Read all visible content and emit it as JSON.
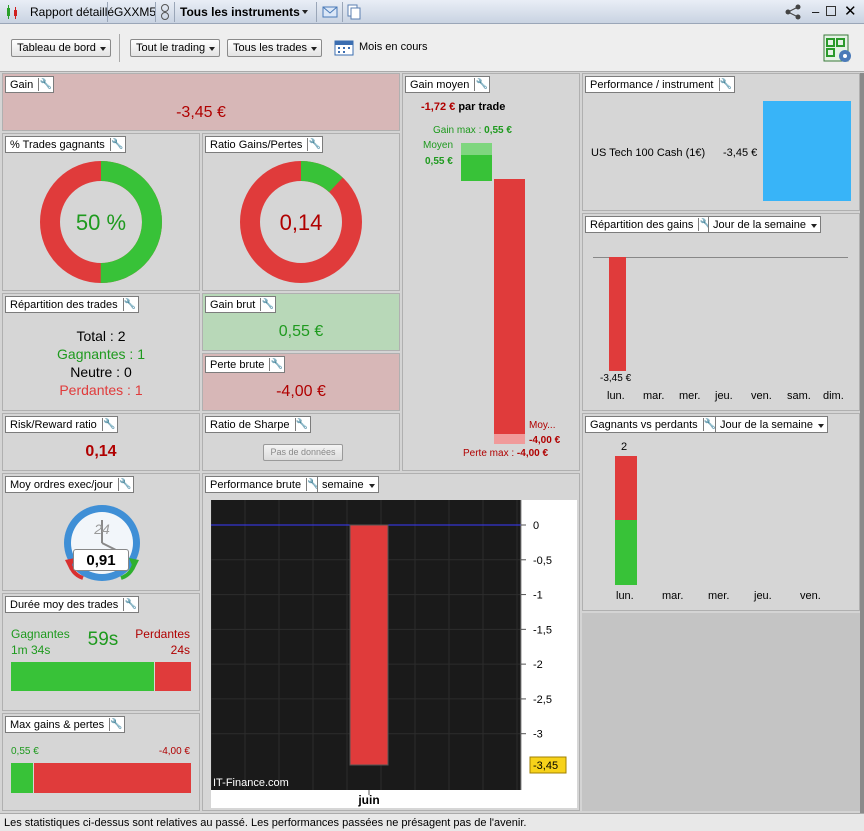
{
  "titlebar": {
    "report_tab": "Rapport détaillé",
    "account_tab": "GXXM5",
    "instruments": "Tous les instruments"
  },
  "toolbar": {
    "dashboard": "Tableau de bord",
    "trading": "Tout le trading",
    "trades": "Tous les trades",
    "period": "Mois en cours"
  },
  "gain": {
    "title": "Gain",
    "value": "-3,45 €"
  },
  "win_pct": {
    "title": "% Trades gagnants",
    "value": "50 %",
    "fraction": 0.5
  },
  "ratio": {
    "title": "Ratio Gains/Pertes",
    "value": "0,14",
    "fraction": 0.12
  },
  "gain_moyen": {
    "title": "Gain moyen",
    "value": "-1,72 €",
    "per_trade": "par trade",
    "gain_max_label": "Gain max :",
    "gain_max": "0,55 €",
    "moyen_label": "Moyen",
    "moyen_gain": "0,55 €",
    "moy_loss_label": "Moy...",
    "moy_loss": "-4,00 €",
    "perte_max_label": "Perte max :",
    "perte_max": "-4,00 €"
  },
  "perf_instrument": {
    "title": "Performance / instrument",
    "instrument": "US Tech 100 Cash (1€)",
    "value": "-3,45 €"
  },
  "repartition_gains": {
    "title": "Répartition des gains",
    "select": "Jour de la semaine",
    "bar_label": "-3,45 €",
    "days": [
      "lun.",
      "mar.",
      "mer.",
      "jeu.",
      "ven.",
      "sam.",
      "dim."
    ]
  },
  "repartition_trades": {
    "title": "Répartition des trades",
    "total_label": "Total :",
    "total": "2",
    "gagnantes_label": "Gagnantes :",
    "gagnantes": "1",
    "neutre_label": "Neutre :",
    "neutre": "0",
    "perdantes_label": "Perdantes :",
    "perdantes": "1"
  },
  "gain_brut": {
    "title": "Gain brut",
    "value": "0,55 €"
  },
  "perte_brute": {
    "title": "Perte brute",
    "value": "-4,00 €"
  },
  "gagnants_perdants": {
    "title": "Gagnants vs perdants",
    "select": "Jour de la semaine",
    "count": "2",
    "days": [
      "lun.",
      "mar.",
      "mer.",
      "jeu.",
      "ven."
    ]
  },
  "risk_reward": {
    "title": "Risk/Reward ratio",
    "value": "0,14"
  },
  "sharpe": {
    "title": "Ratio de Sharpe",
    "button": "Pas de données"
  },
  "moy_ordres": {
    "title": "Moy ordres exec/jour",
    "value": "0,91",
    "clock": "24"
  },
  "perf_brute": {
    "title": "Performance brute",
    "select": "semaine",
    "watermark": "IT-Finance.com"
  },
  "duree": {
    "title": "Durée moy des trades",
    "gagnantes_label": "Gagnantes",
    "gagnantes": "1m 34s",
    "avg": "59s",
    "perdantes_label": "Perdantes",
    "perdantes": "24s"
  },
  "max_gp": {
    "title": "Max gains & pertes",
    "gain": "0,55 €",
    "perte": "-4,00 €"
  },
  "footer": "Les statistiques ci-dessus sont relatives au passé. Les performances passées ne présagent pas de l'avenir.",
  "chart_data": {
    "type": "bar",
    "categories": [
      "juin"
    ],
    "values": [
      -3.45
    ],
    "value_label": "-3,45",
    "yticks": [
      0,
      -0.5,
      -1,
      -1.5,
      -2,
      -2.5,
      -3
    ],
    "ytick_labels": [
      "0",
      "-0,5",
      "-1",
      "-1,5",
      "-2",
      "-2,5",
      "-3"
    ],
    "ylim": [
      -3.45,
      0
    ],
    "bar_color": "#e03b3b"
  }
}
